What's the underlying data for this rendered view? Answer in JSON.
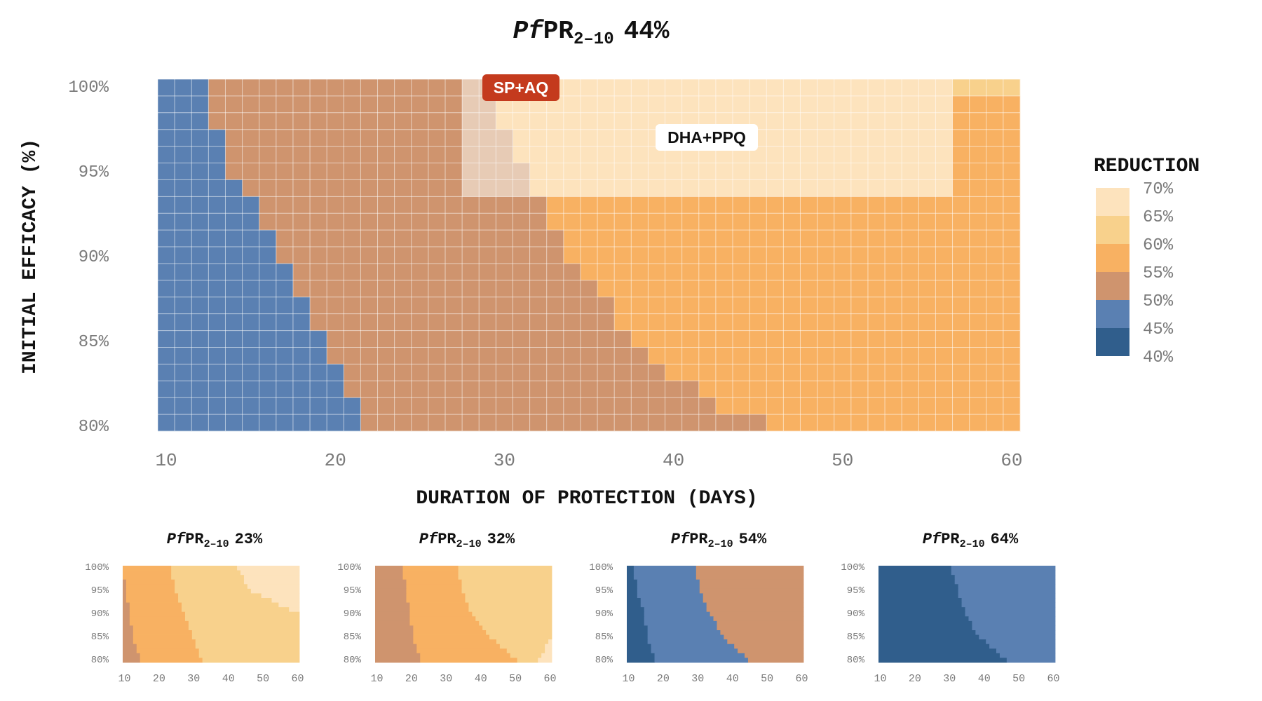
{
  "main": {
    "title_prefix": "Pf",
    "title_main": "PR",
    "title_sub": "2–10",
    "title_value": "44%",
    "xlabel": "DURATION OF PROTECTION (DAYS)",
    "ylabel": "INITIAL EFFICACY (%)",
    "annotation_sp": "SP+AQ",
    "annotation_dha": "DHA+PPQ"
  },
  "legend": {
    "title": "REDUCTION",
    "items": [
      {
        "label": "70%",
        "color": "#fde3bd"
      },
      {
        "label": "65%",
        "color": "#f8d18c"
      },
      {
        "label": "60%",
        "color": "#f8b162"
      },
      {
        "label": "55%",
        "color": "#cf946e"
      },
      {
        "label": "50%",
        "color": "#5a80b2"
      },
      {
        "label": "45%",
        "color": "#305e8c"
      },
      {
        "label": "40%",
        "color": ""
      }
    ]
  },
  "colors": {
    "c70": "#fde3bd",
    "c65": "#f8d18c",
    "c60": "#f8b162",
    "c55": "#cf946e",
    "c50": "#5a80b2",
    "c45": "#305e8c",
    "highlight": "#e7cbb5",
    "sp_box": "#c43a1d"
  },
  "chart_data": [
    {
      "type": "heatmap",
      "title": "PfPR2–10 44%",
      "xlabel": "DURATION OF PROTECTION (DAYS)",
      "ylabel": "INITIAL EFFICACY (%)",
      "xlim": [
        10,
        60
      ],
      "ylim": [
        80,
        100
      ],
      "xticks": [
        "10",
        "20",
        "30",
        "40",
        "50",
        "60"
      ],
      "yticks": [
        "100%",
        "95%",
        "90%",
        "85%",
        "80%"
      ],
      "x_step_days": 1,
      "y_step_pct": 1,
      "value_bands": [
        "50%",
        "55%",
        "60%",
        "65%"
      ],
      "boundaries_by_efficacy": [
        {
          "efficacy": 100,
          "b50_55_day": 13,
          "b55_60_day": 28,
          "b60_65_day": 57,
          "top_right_band": "65%"
        },
        {
          "efficacy": 99,
          "b50_55_day": 13,
          "b55_60_day": 28,
          "b60_65_day": 57
        },
        {
          "efficacy": 98,
          "b50_55_day": 13,
          "b55_60_day": 28,
          "b60_65_day": 57
        },
        {
          "efficacy": 97,
          "b50_55_day": 14,
          "b55_60_day": 28,
          "b60_65_day": 57
        },
        {
          "efficacy": 96,
          "b50_55_day": 14,
          "b55_60_day": 28,
          "b60_65_day": 57
        },
        {
          "efficacy": 95,
          "b50_55_day": 14,
          "b55_60_day": 28,
          "b60_65_day": 57
        },
        {
          "efficacy": 94,
          "b50_55_day": 15,
          "b55_60_day": 28,
          "b60_65_day": 57
        },
        {
          "efficacy": 93,
          "b50_55_day": 16,
          "b55_60_day": 33
        },
        {
          "efficacy": 92,
          "b50_55_day": 16,
          "b55_60_day": 33
        },
        {
          "efficacy": 91,
          "b50_55_day": 17,
          "b55_60_day": 34
        },
        {
          "efficacy": 90,
          "b50_55_day": 17,
          "b55_60_day": 34
        },
        {
          "efficacy": 89,
          "b50_55_day": 18,
          "b55_60_day": 35
        },
        {
          "efficacy": 88,
          "b50_55_day": 18,
          "b55_60_day": 36
        },
        {
          "efficacy": 87,
          "b50_55_day": 19,
          "b55_60_day": 37
        },
        {
          "efficacy": 86,
          "b50_55_day": 19,
          "b55_60_day": 37
        },
        {
          "efficacy": 85,
          "b50_55_day": 20,
          "b55_60_day": 38
        },
        {
          "efficacy": 84,
          "b50_55_day": 20,
          "b55_60_day": 39
        },
        {
          "efficacy": 83,
          "b50_55_day": 21,
          "b55_60_day": 40
        },
        {
          "efficacy": 82,
          "b50_55_day": 21,
          "b55_60_day": 42
        },
        {
          "efficacy": 81,
          "b50_55_day": 22,
          "b55_60_day": 43
        },
        {
          "efficacy": 80,
          "b50_55_day": 22,
          "b55_60_day": 46
        }
      ],
      "annotations": [
        "SP+AQ",
        "DHA+PPQ"
      ]
    },
    {
      "type": "heatmap",
      "title": "PfPR2–10 23%",
      "xlim": [
        10,
        60
      ],
      "ylim": [
        80,
        100
      ],
      "xticks": [
        "10",
        "20",
        "30",
        "40",
        "50",
        "60"
      ],
      "yticks": [
        "100%",
        "95%",
        "90%",
        "85%",
        "80%"
      ],
      "bands": [
        "55%",
        "60%",
        "65%",
        "70%"
      ],
      "boundaries_by_efficacy": [
        {
          "efficacy": 100,
          "b55_60_day": 10,
          "b60_65_day": 24,
          "b65_70_day": 43
        },
        {
          "efficacy": 95,
          "b55_60_day": 11,
          "b60_65_day": 25,
          "b65_70_day": 47
        },
        {
          "efficacy": 90,
          "b55_60_day": 12,
          "b60_65_day": 28
        },
        {
          "efficacy": 85,
          "b55_60_day": 13,
          "b60_65_day": 30
        },
        {
          "efficacy": 80,
          "b55_60_day": 15,
          "b60_65_day": 33
        }
      ]
    },
    {
      "type": "heatmap",
      "title": "PfPR2–10 32%",
      "xlim": [
        10,
        60
      ],
      "ylim": [
        80,
        100
      ],
      "xticks": [
        "10",
        "20",
        "30",
        "40",
        "50",
        "60"
      ],
      "yticks": [
        "100%",
        "95%",
        "90%",
        "85%",
        "80%"
      ],
      "bands": [
        "50%",
        "55%",
        "60%",
        "65%"
      ],
      "boundaries_by_efficacy": [
        {
          "efficacy": 100,
          "b50_55_day": 18,
          "b55_60_day": 34
        },
        {
          "efficacy": 95,
          "b50_55_day": 19,
          "b55_60_day": 35
        },
        {
          "efficacy": 90,
          "b50_55_day": 20,
          "b55_60_day": 38
        },
        {
          "efficacy": 85,
          "b50_55_day": 21,
          "b55_60_day": 43
        },
        {
          "efficacy": 80,
          "b50_55_day": 23,
          "b55_60_day": 51,
          "b60_65_day": 57
        }
      ]
    },
    {
      "type": "heatmap",
      "title": "PfPR2–10 54%",
      "xlim": [
        10,
        60
      ],
      "ylim": [
        80,
        100
      ],
      "xticks": [
        "10",
        "20",
        "30",
        "40",
        "50",
        "60"
      ],
      "yticks": [
        "100%",
        "95%",
        "90%",
        "85%",
        "80%"
      ],
      "bands": [
        "40%",
        "45%",
        "50%"
      ],
      "boundaries_by_efficacy": [
        {
          "efficacy": 100,
          "b40_45_day": 12,
          "b45_50_day": 30
        },
        {
          "efficacy": 95,
          "b40_45_day": 13,
          "b45_50_day": 31
        },
        {
          "efficacy": 90,
          "b40_45_day": 15,
          "b45_50_day": 34
        },
        {
          "efficacy": 85,
          "b40_45_day": 16,
          "b45_50_day": 38
        },
        {
          "efficacy": 80,
          "b40_45_day": 18,
          "b45_50_day": 45
        }
      ]
    },
    {
      "type": "heatmap",
      "title": "PfPR2–10 64%",
      "xlim": [
        10,
        60
      ],
      "ylim": [
        80,
        100
      ],
      "xticks": [
        "10",
        "20",
        "30",
        "40",
        "50",
        "60"
      ],
      "yticks": [
        "100%",
        "95%",
        "90%",
        "85%",
        "80%"
      ],
      "bands": [
        "40%",
        "45%"
      ],
      "boundaries_by_efficacy": [
        {
          "efficacy": 100,
          "b40_45_day": 31
        },
        {
          "efficacy": 95,
          "b40_45_day": 33
        },
        {
          "efficacy": 90,
          "b40_45_day": 35
        },
        {
          "efficacy": 85,
          "b40_45_day": 39
        },
        {
          "efficacy": 80,
          "b40_45_day": 47
        }
      ]
    }
  ],
  "small": [
    {
      "title_prefix": "Pf",
      "title_main": "PR",
      "title_sub": "2–10",
      "title_value": "23%"
    },
    {
      "title_prefix": "Pf",
      "title_main": "PR",
      "title_sub": "2–10",
      "title_value": "32%"
    },
    {
      "title_prefix": "Pf",
      "title_main": "PR",
      "title_sub": "2–10",
      "title_value": "54%"
    },
    {
      "title_prefix": "Pf",
      "title_main": "PR",
      "title_sub": "2–10",
      "title_value": "64%"
    }
  ],
  "xticks": [
    "10",
    "20",
    "30",
    "40",
    "50",
    "60"
  ],
  "yticks": [
    "100%",
    "95%",
    "90%",
    "85%",
    "80%"
  ]
}
